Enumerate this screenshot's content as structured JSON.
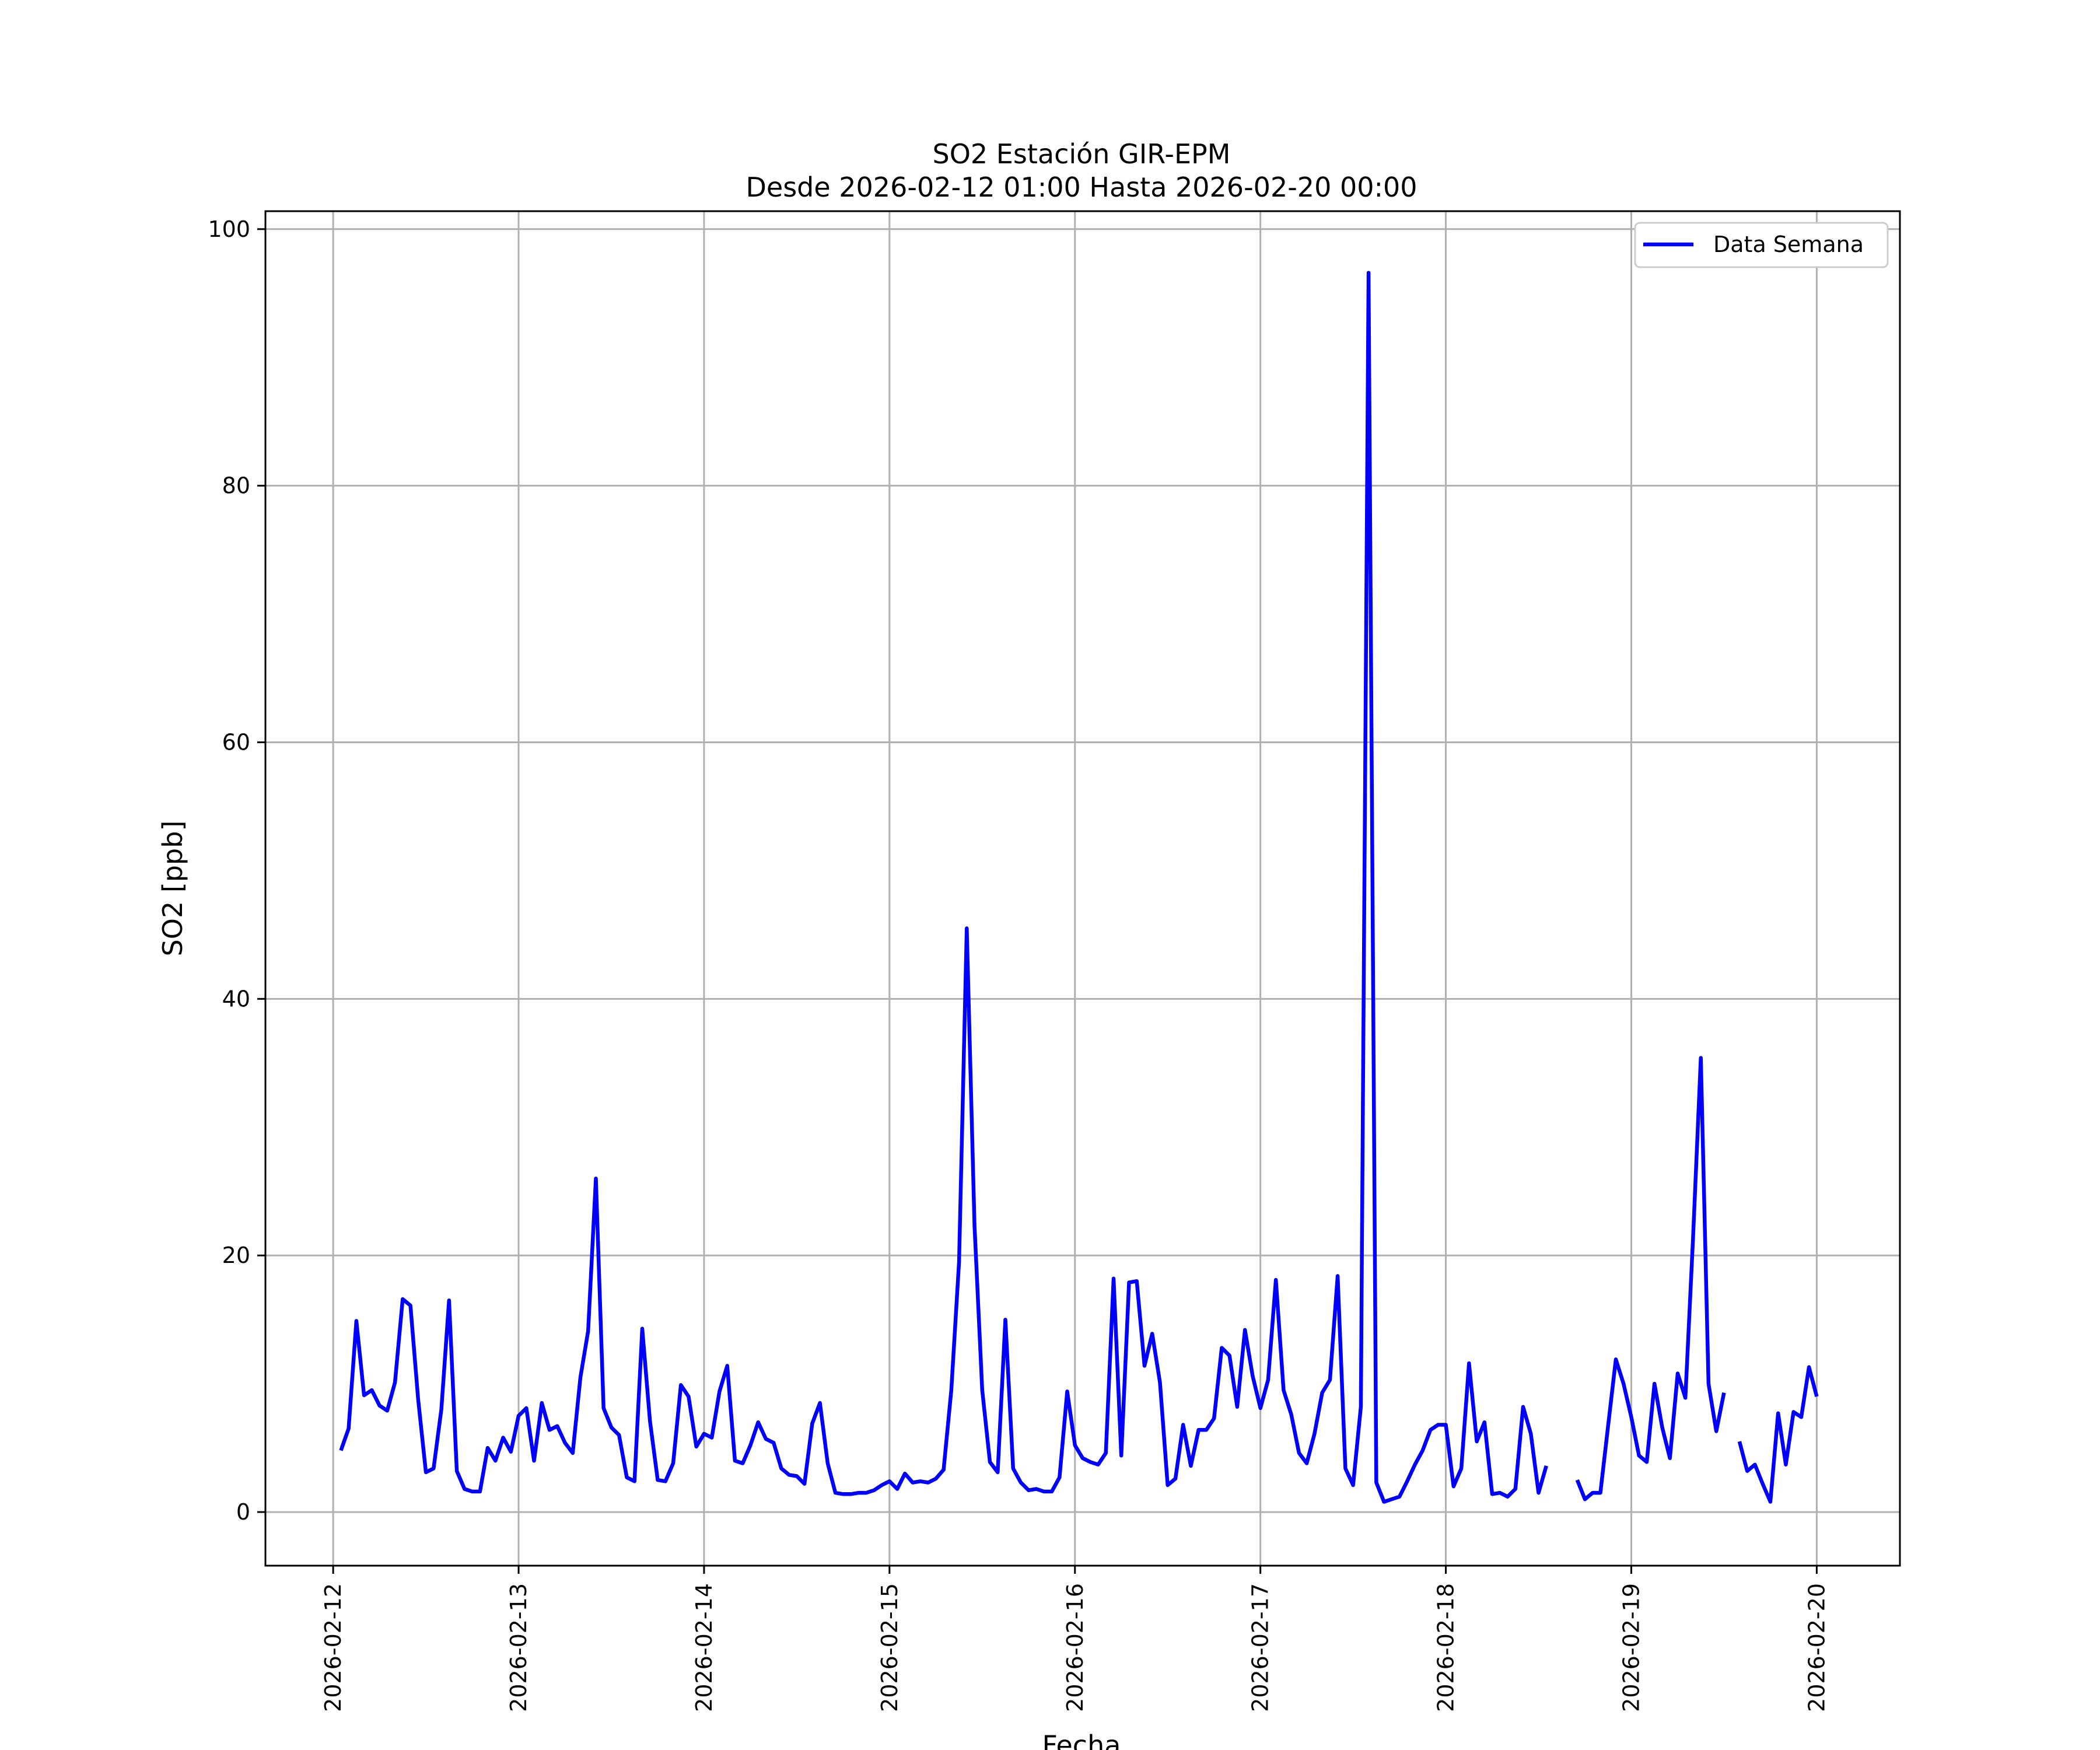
{
  "chart_data": {
    "type": "line",
    "title": "SO2 Estación GIR-EPM",
    "subtitle": "Desde 2026-02-12 01:00 Hasta 2026-02-20 00:00",
    "xlabel": "Fecha",
    "ylabel": "SO2 [ppb]",
    "xlim": [
      "2026-02-11T15:14",
      "2026-02-20T10:46"
    ],
    "ylim": [
      -4.18,
      101.4
    ],
    "x_ticks": [
      "2026-02-12",
      "2026-02-13",
      "2026-02-14",
      "2026-02-15",
      "2026-02-16",
      "2026-02-17",
      "2026-02-18",
      "2026-02-19",
      "2026-02-20"
    ],
    "y_ticks": [
      0,
      20,
      40,
      60,
      80,
      100
    ],
    "grid": true,
    "legend_position": "top-right",
    "series": [
      {
        "name": "Data Semana",
        "color": "#0000ff",
        "x": [
          "2026-02-12T01:00",
          "2026-02-12T02:00",
          "2026-02-12T03:00",
          "2026-02-12T04:00",
          "2026-02-12T05:00",
          "2026-02-12T06:00",
          "2026-02-12T07:00",
          "2026-02-12T08:00",
          "2026-02-12T09:00",
          "2026-02-12T10:00",
          "2026-02-12T11:00",
          "2026-02-12T12:00",
          "2026-02-12T13:00",
          "2026-02-12T14:00",
          "2026-02-12T15:00",
          "2026-02-12T16:00",
          "2026-02-12T17:00",
          "2026-02-12T18:00",
          "2026-02-12T19:00",
          "2026-02-12T20:00",
          "2026-02-12T21:00",
          "2026-02-12T22:00",
          "2026-02-12T23:00",
          "2026-02-13T00:00",
          "2026-02-13T01:00",
          "2026-02-13T02:00",
          "2026-02-13T03:00",
          "2026-02-13T04:00",
          "2026-02-13T05:00",
          "2026-02-13T06:00",
          "2026-02-13T07:00",
          "2026-02-13T08:00",
          "2026-02-13T09:00",
          "2026-02-13T10:00",
          "2026-02-13T11:00",
          "2026-02-13T12:00",
          "2026-02-13T13:00",
          "2026-02-13T14:00",
          "2026-02-13T15:00",
          "2026-02-13T16:00",
          "2026-02-13T17:00",
          "2026-02-13T18:00",
          "2026-02-13T19:00",
          "2026-02-13T20:00",
          "2026-02-13T21:00",
          "2026-02-13T22:00",
          "2026-02-13T23:00",
          "2026-02-14T00:00",
          "2026-02-14T01:00",
          "2026-02-14T02:00",
          "2026-02-14T03:00",
          "2026-02-14T04:00",
          "2026-02-14T05:00",
          "2026-02-14T06:00",
          "2026-02-14T07:00",
          "2026-02-14T08:00",
          "2026-02-14T09:00",
          "2026-02-14T10:00",
          "2026-02-14T11:00",
          "2026-02-14T12:00",
          "2026-02-14T13:00",
          "2026-02-14T14:00",
          "2026-02-14T15:00",
          "2026-02-14T16:00",
          "2026-02-14T17:00",
          "2026-02-14T18:00",
          "2026-02-14T19:00",
          "2026-02-14T20:00",
          "2026-02-14T21:00",
          "2026-02-14T22:00",
          "2026-02-14T23:00",
          "2026-02-15T00:00",
          "2026-02-15T01:00",
          "2026-02-15T02:00",
          "2026-02-15T03:00",
          "2026-02-15T04:00",
          "2026-02-15T05:00",
          "2026-02-15T06:00",
          "2026-02-15T07:00",
          "2026-02-15T08:00",
          "2026-02-15T09:00",
          "2026-02-15T10:00",
          "2026-02-15T11:00",
          "2026-02-15T12:00",
          "2026-02-15T13:00",
          "2026-02-15T14:00",
          "2026-02-15T15:00",
          "2026-02-15T16:00",
          "2026-02-15T17:00",
          "2026-02-15T18:00",
          "2026-02-15T19:00",
          "2026-02-15T20:00",
          "2026-02-15T21:00",
          "2026-02-15T22:00",
          "2026-02-15T23:00",
          "2026-02-16T00:00",
          "2026-02-16T01:00",
          "2026-02-16T02:00",
          "2026-02-16T03:00",
          "2026-02-16T04:00",
          "2026-02-16T05:00",
          "2026-02-16T06:00",
          "2026-02-16T07:00",
          "2026-02-16T08:00",
          "2026-02-16T09:00",
          "2026-02-16T10:00",
          "2026-02-16T11:00",
          "2026-02-16T12:00",
          "2026-02-16T13:00",
          "2026-02-16T14:00",
          "2026-02-16T15:00",
          "2026-02-16T16:00",
          "2026-02-16T17:00",
          "2026-02-16T18:00",
          "2026-02-16T19:00",
          "2026-02-16T20:00",
          "2026-02-16T21:00",
          "2026-02-16T22:00",
          "2026-02-16T23:00",
          "2026-02-17T00:00",
          "2026-02-17T01:00",
          "2026-02-17T02:00",
          "2026-02-17T03:00",
          "2026-02-17T04:00",
          "2026-02-17T05:00",
          "2026-02-17T06:00",
          "2026-02-17T07:00",
          "2026-02-17T08:00",
          "2026-02-17T09:00",
          "2026-02-17T10:00",
          "2026-02-17T11:00",
          "2026-02-17T12:00",
          "2026-02-17T13:00",
          "2026-02-17T14:00",
          "2026-02-17T15:00",
          "2026-02-17T16:00",
          "2026-02-17T17:00",
          "2026-02-17T18:00",
          "2026-02-17T19:00",
          "2026-02-17T20:00",
          "2026-02-17T21:00",
          "2026-02-17T22:00",
          "2026-02-17T23:00",
          "2026-02-18T00:00",
          "2026-02-18T01:00",
          "2026-02-18T02:00",
          "2026-02-18T03:00",
          "2026-02-18T04:00",
          "2026-02-18T05:00",
          "2026-02-18T06:00",
          "2026-02-18T07:00",
          "2026-02-18T08:00",
          "2026-02-18T09:00",
          "2026-02-18T10:00",
          "2026-02-18T11:00",
          "2026-02-18T12:00",
          "2026-02-18T13:00",
          "2026-02-18T14:00",
          "2026-02-18T15:00",
          "2026-02-18T16:00",
          "2026-02-18T17:00",
          "2026-02-18T18:00",
          "2026-02-18T19:00",
          "2026-02-18T20:00",
          "2026-02-18T21:00",
          "2026-02-18T22:00",
          "2026-02-18T23:00",
          "2026-02-19T00:00",
          "2026-02-19T01:00",
          "2026-02-19T02:00",
          "2026-02-19T03:00",
          "2026-02-19T04:00",
          "2026-02-19T05:00",
          "2026-02-19T06:00",
          "2026-02-19T07:00",
          "2026-02-19T08:00",
          "2026-02-19T09:00",
          "2026-02-19T10:00",
          "2026-02-19T11:00",
          "2026-02-19T12:00",
          "2026-02-19T13:00",
          "2026-02-19T14:00",
          "2026-02-19T15:00",
          "2026-02-19T16:00",
          "2026-02-19T17:00",
          "2026-02-19T18:00",
          "2026-02-19T19:00",
          "2026-02-19T20:00",
          "2026-02-19T21:00",
          "2026-02-19T22:00",
          "2026-02-19T23:00",
          "2026-02-20T00:00"
        ],
        "y": [
          4.8,
          6.5,
          14.9,
          9.1,
          9.5,
          8.3,
          7.9,
          10.1,
          16.6,
          16.1,
          8.8,
          3.1,
          3.4,
          8.0,
          16.5,
          3.2,
          1.8,
          1.6,
          1.6,
          5.0,
          4.0,
          5.8,
          4.7,
          7.5,
          8.1,
          4.0,
          8.5,
          6.4,
          6.7,
          5.4,
          4.6,
          10.5,
          14.1,
          26.0,
          8.1,
          6.6,
          6.0,
          2.7,
          2.4,
          14.3,
          7.1,
          2.5,
          2.4,
          3.8,
          9.9,
          9.0,
          5.1,
          6.1,
          5.8,
          9.4,
          11.4,
          4.0,
          3.8,
          5.2,
          7.0,
          5.7,
          5.4,
          3.4,
          2.9,
          2.8,
          2.2,
          6.9,
          8.5,
          3.8,
          1.5,
          1.4,
          1.4,
          1.5,
          1.5,
          1.7,
          2.1,
          2.4,
          1.8,
          3.0,
          2.3,
          2.4,
          2.3,
          2.6,
          3.3,
          9.5,
          19.5,
          45.5,
          22.3,
          9.5,
          3.9,
          3.1,
          15.0,
          3.4,
          2.3,
          1.7,
          1.8,
          1.6,
          1.6,
          2.7,
          9.4,
          5.2,
          4.2,
          3.9,
          3.7,
          4.6,
          18.2,
          4.4,
          17.9,
          18.0,
          11.4,
          13.9,
          10.1,
          2.1,
          2.6,
          6.8,
          3.6,
          6.4,
          6.4,
          7.3,
          12.8,
          12.2,
          8.2,
          14.2,
          10.6,
          8.1,
          10.3,
          18.1,
          9.5,
          7.6,
          4.6,
          3.8,
          6.1,
          9.3,
          10.3,
          18.4,
          3.4,
          2.1,
          8.2,
          96.6,
          2.3,
          0.8,
          1.0,
          1.2,
          2.4,
          3.7,
          4.8,
          6.4,
          6.8,
          6.8,
          2.0,
          3.4,
          11.6,
          5.5,
          7.0,
          1.4,
          1.5,
          1.2,
          1.8,
          8.2,
          6.1,
          1.5,
          3.6,
          null,
          null,
          null,
          2.5,
          1.0,
          1.5,
          1.5,
          6.7,
          11.9,
          10.0,
          7.4,
          4.4,
          3.9,
          10.0,
          6.6,
          4.2,
          10.8,
          8.9,
          21.4,
          35.4,
          10.0,
          6.3,
          9.3,
          null,
          5.5,
          3.2,
          3.7,
          2.2,
          0.8,
          7.7,
          3.7,
          7.8,
          7.4,
          11.3,
          9.0
        ]
      }
    ]
  }
}
